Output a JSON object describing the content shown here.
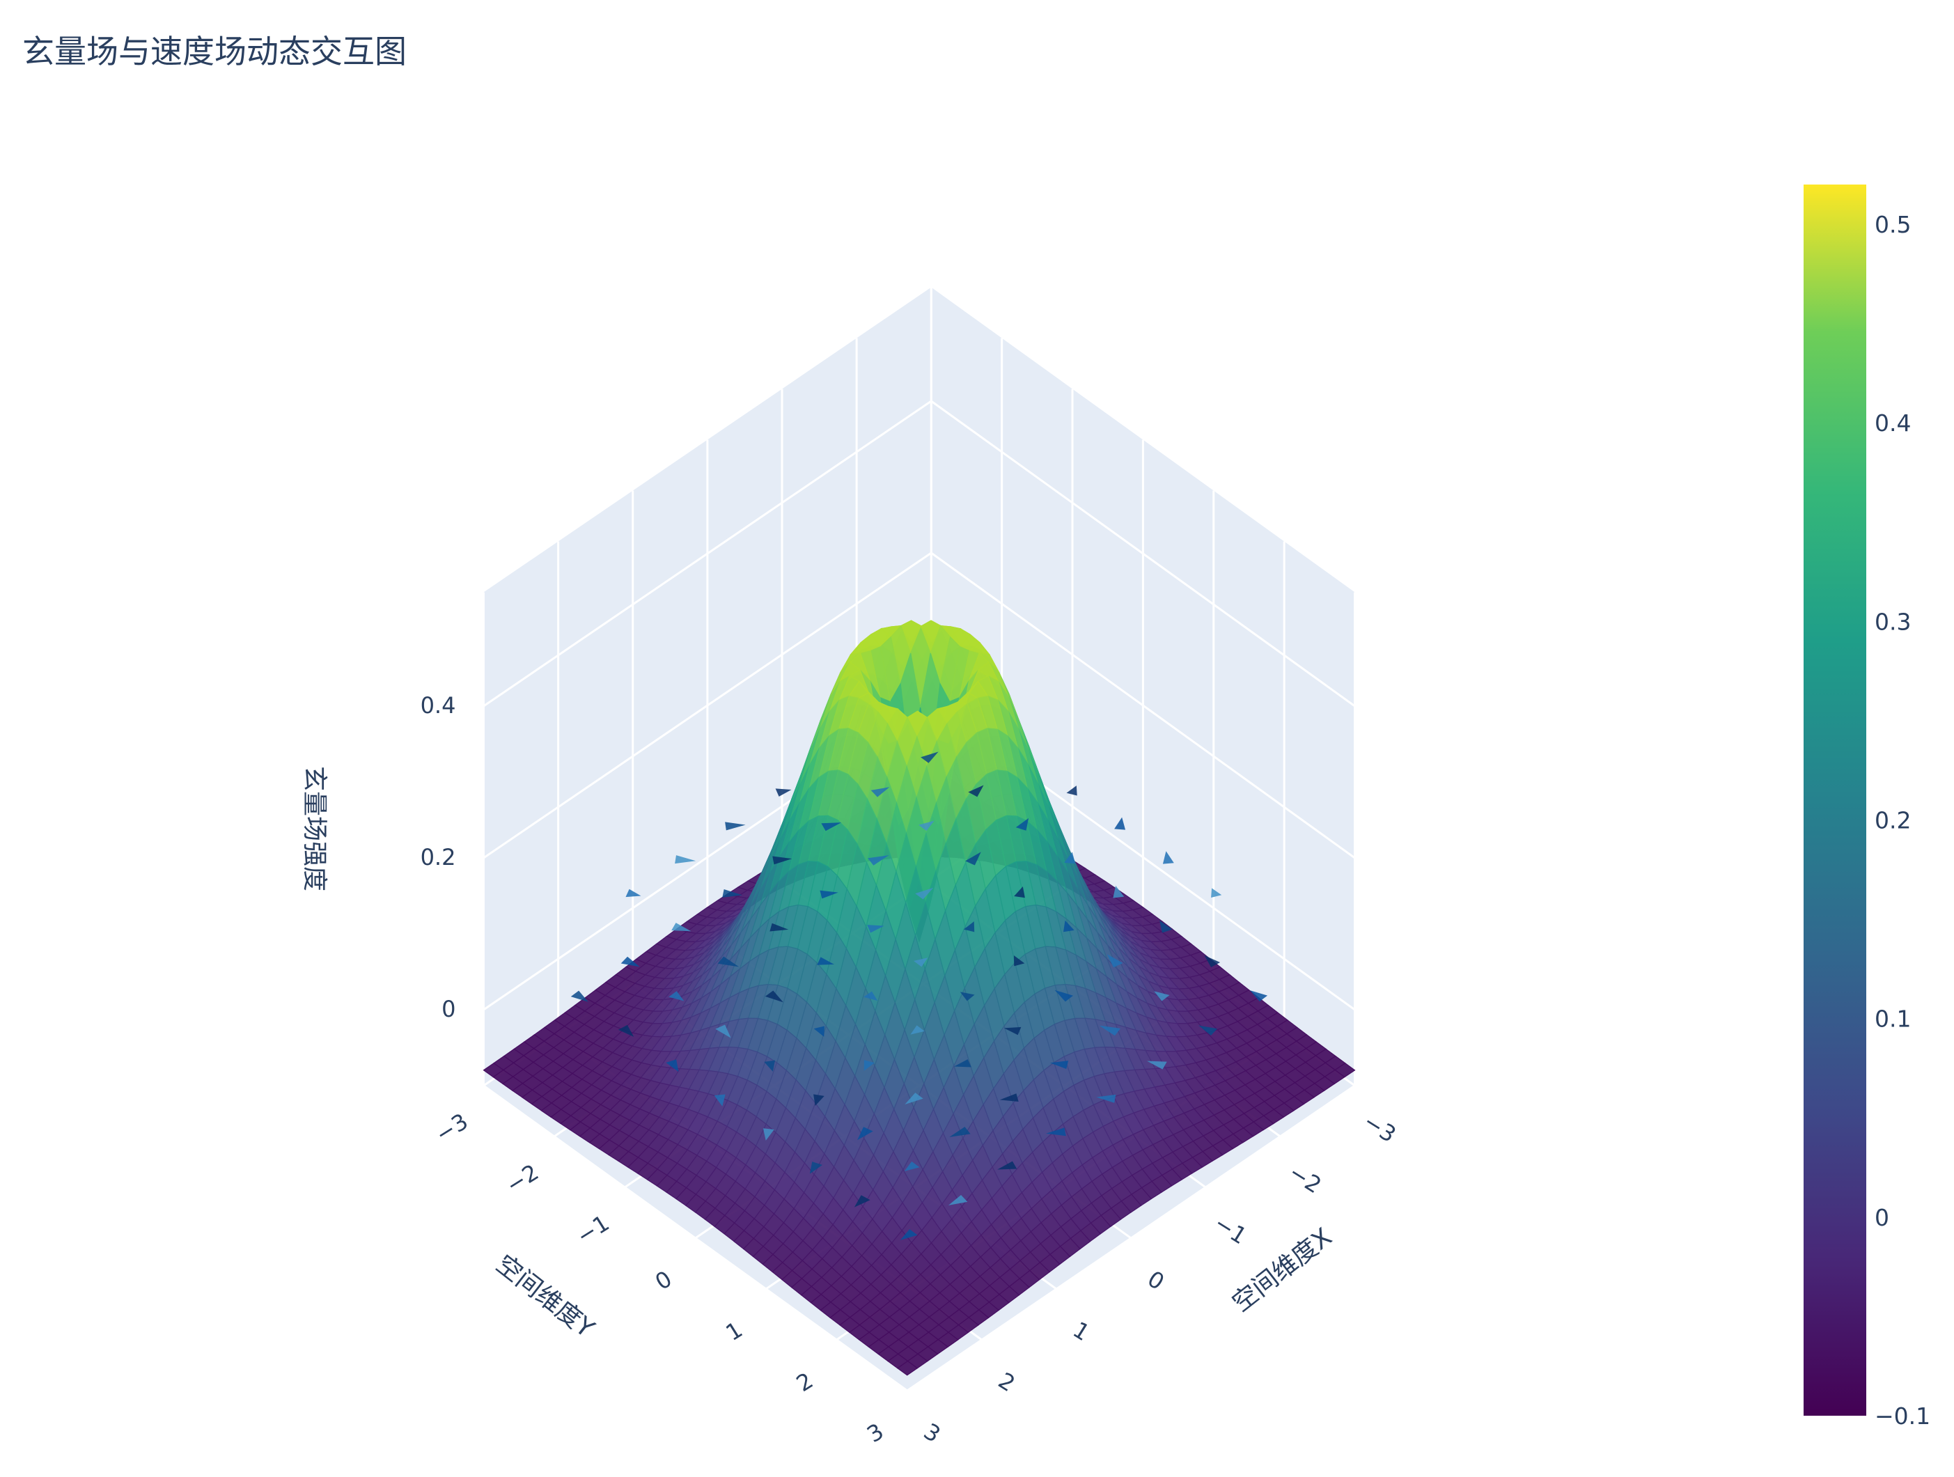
{
  "title": "玄量场与速度场动态交互图",
  "chart_data": {
    "type": "surface",
    "surface": {
      "name": "玄量场强度",
      "function": "z = r^2 * exp(-r^2/2) * cos(r) style ring-shaped peak; low at center dip, high ring near r≈0.8, tails near -0.08 at corners",
      "x_range": [
        -3,
        3
      ],
      "y_range": [
        -3,
        3
      ],
      "z_range": [
        -0.1,
        0.52
      ],
      "colorscale": "Viridis"
    },
    "cones": {
      "name": "速度场",
      "description": "velocity cones on grid near z≈0, dark blue shades",
      "colorscale": "Blues"
    },
    "axes": {
      "x": {
        "title": "空间维度X",
        "ticks": [
          "−3",
          "−2",
          "−1",
          "0",
          "1",
          "2",
          "3"
        ]
      },
      "y": {
        "title": "空间维度Y",
        "ticks": [
          "−3",
          "−2",
          "−1",
          "0",
          "1",
          "2",
          "3"
        ]
      },
      "z": {
        "title": "玄量场强度",
        "ticks": [
          "0",
          "0.2",
          "0.4"
        ]
      }
    },
    "colorbar": {
      "range": [
        -0.1,
        0.52
      ],
      "ticks": [
        "−0.1",
        "0",
        "0.1",
        "0.2",
        "0.3",
        "0.4",
        "0.5"
      ],
      "tick_values": [
        -0.1,
        0,
        0.1,
        0.2,
        0.3,
        0.4,
        0.5
      ]
    },
    "colors": {
      "pane": "#e5ecf6",
      "grid": "#ffffff",
      "text": "#2a3f5f"
    }
  }
}
